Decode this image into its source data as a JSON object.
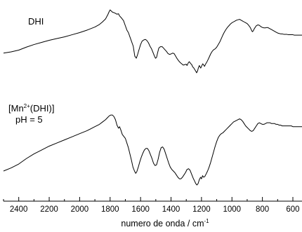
{
  "chart_data": {
    "type": "line",
    "xlabel_main": "numero de onda / cm",
    "xlabel_sup": "-1",
    "xlim": [
      2500,
      540
    ],
    "x_reversed": true,
    "xticks": [
      2400,
      2200,
      2000,
      1800,
      1600,
      1400,
      1200,
      1000,
      800,
      600
    ],
    "y_axis_shown": false,
    "grid": false,
    "legend": "none",
    "color": "#000000",
    "series": [
      {
        "label_lines": [
          "DHI"
        ],
        "offset": "top",
        "points": [
          [
            2500,
            0.02
          ],
          [
            2450,
            0.05
          ],
          [
            2400,
            0.09
          ],
          [
            2350,
            0.16
          ],
          [
            2300,
            0.22
          ],
          [
            2250,
            0.27
          ],
          [
            2200,
            0.32
          ],
          [
            2150,
            0.36
          ],
          [
            2100,
            0.4
          ],
          [
            2050,
            0.45
          ],
          [
            2000,
            0.5
          ],
          [
            1950,
            0.56
          ],
          [
            1900,
            0.63
          ],
          [
            1870,
            0.69
          ],
          [
            1850,
            0.75
          ],
          [
            1830,
            0.82
          ],
          [
            1815,
            0.92
          ],
          [
            1805,
            1.0
          ],
          [
            1800,
            1.03
          ],
          [
            1785,
            0.98
          ],
          [
            1770,
            0.96
          ],
          [
            1755,
            0.93
          ],
          [
            1745,
            0.94
          ],
          [
            1738,
            0.89
          ],
          [
            1725,
            0.84
          ],
          [
            1712,
            0.78
          ],
          [
            1700,
            0.66
          ],
          [
            1690,
            0.56
          ],
          [
            1680,
            0.5
          ],
          [
            1670,
            0.4
          ],
          [
            1658,
            0.28
          ],
          [
            1648,
            0.18
          ],
          [
            1638,
            -0.05
          ],
          [
            1628,
            -0.1
          ],
          [
            1620,
            -0.02
          ],
          [
            1612,
            0.08
          ],
          [
            1600,
            0.22
          ],
          [
            1590,
            0.3
          ],
          [
            1578,
            0.33
          ],
          [
            1568,
            0.34
          ],
          [
            1560,
            0.32
          ],
          [
            1548,
            0.26
          ],
          [
            1538,
            0.18
          ],
          [
            1528,
            0.12
          ],
          [
            1520,
            0.05
          ],
          [
            1510,
            -0.04
          ],
          [
            1502,
            -0.1
          ],
          [
            1495,
            -0.08
          ],
          [
            1488,
            0.03
          ],
          [
            1480,
            0.14
          ],
          [
            1470,
            0.17
          ],
          [
            1458,
            0.17
          ],
          [
            1450,
            0.14
          ],
          [
            1440,
            0.1
          ],
          [
            1430,
            0.06
          ],
          [
            1420,
            0.01
          ],
          [
            1410,
            -0.01
          ],
          [
            1400,
            0.0
          ],
          [
            1390,
            0.02
          ],
          [
            1380,
            0.01
          ],
          [
            1370,
            -0.05
          ],
          [
            1360,
            -0.11
          ],
          [
            1350,
            -0.16
          ],
          [
            1340,
            -0.2
          ],
          [
            1330,
            -0.23
          ],
          [
            1320,
            -0.26
          ],
          [
            1310,
            -0.25
          ],
          [
            1300,
            -0.24
          ],
          [
            1295,
            -0.27
          ],
          [
            1287,
            -0.21
          ],
          [
            1280,
            -0.18
          ],
          [
            1272,
            -0.22
          ],
          [
            1264,
            -0.25
          ],
          [
            1258,
            -0.3
          ],
          [
            1250,
            -0.33
          ],
          [
            1245,
            -0.36
          ],
          [
            1238,
            -0.4
          ],
          [
            1232,
            -0.44
          ],
          [
            1226,
            -0.4
          ],
          [
            1220,
            -0.32
          ],
          [
            1214,
            -0.27
          ],
          [
            1210,
            -0.3
          ],
          [
            1205,
            -0.33
          ],
          [
            1200,
            -0.29
          ],
          [
            1192,
            -0.23
          ],
          [
            1185,
            -0.26
          ],
          [
            1180,
            -0.29
          ],
          [
            1172,
            -0.23
          ],
          [
            1165,
            -0.19
          ],
          [
            1158,
            -0.14
          ],
          [
            1150,
            -0.08
          ],
          [
            1140,
            0.0
          ],
          [
            1130,
            0.06
          ],
          [
            1120,
            0.1
          ],
          [
            1110,
            0.12
          ],
          [
            1100,
            0.16
          ],
          [
            1090,
            0.22
          ],
          [
            1080,
            0.28
          ],
          [
            1070,
            0.36
          ],
          [
            1060,
            0.44
          ],
          [
            1050,
            0.51
          ],
          [
            1040,
            0.57
          ],
          [
            1030,
            0.62
          ],
          [
            1020,
            0.66
          ],
          [
            1010,
            0.7
          ],
          [
            1000,
            0.73
          ],
          [
            990,
            0.75
          ],
          [
            980,
            0.77
          ],
          [
            970,
            0.79
          ],
          [
            960,
            0.8
          ],
          [
            950,
            0.81
          ],
          [
            940,
            0.79
          ],
          [
            930,
            0.77
          ],
          [
            920,
            0.75
          ],
          [
            910,
            0.73
          ],
          [
            900,
            0.71
          ],
          [
            890,
            0.67
          ],
          [
            880,
            0.62
          ],
          [
            872,
            0.56
          ],
          [
            866,
            0.52
          ],
          [
            860,
            0.54
          ],
          [
            855,
            0.58
          ],
          [
            848,
            0.62
          ],
          [
            840,
            0.66
          ],
          [
            830,
            0.68
          ],
          [
            820,
            0.67
          ],
          [
            810,
            0.64
          ],
          [
            800,
            0.62
          ],
          [
            790,
            0.61
          ],
          [
            780,
            0.61
          ],
          [
            770,
            0.62
          ],
          [
            760,
            0.61
          ],
          [
            750,
            0.59
          ],
          [
            740,
            0.57
          ],
          [
            730,
            0.55
          ],
          [
            720,
            0.53
          ],
          [
            710,
            0.51
          ],
          [
            700,
            0.49
          ],
          [
            690,
            0.48
          ],
          [
            680,
            0.47
          ],
          [
            670,
            0.47
          ],
          [
            660,
            0.46
          ],
          [
            650,
            0.46
          ],
          [
            640,
            0.46
          ],
          [
            630,
            0.45
          ],
          [
            620,
            0.45
          ],
          [
            610,
            0.45
          ],
          [
            600,
            0.45
          ],
          [
            590,
            0.44
          ],
          [
            580,
            0.44
          ],
          [
            570,
            0.44
          ],
          [
            560,
            0.44
          ],
          [
            550,
            0.44
          ],
          [
            540,
            0.44
          ]
        ]
      },
      {
        "label_lines": [
          "[Mn",
          "2+",
          "(DHI)]",
          "pH = 5"
        ],
        "offset": "bottom",
        "points": [
          [
            2500,
            0.0
          ],
          [
            2450,
            0.04
          ],
          [
            2400,
            0.09
          ],
          [
            2350,
            0.16
          ],
          [
            2300,
            0.22
          ],
          [
            2250,
            0.27
          ],
          [
            2200,
            0.32
          ],
          [
            2150,
            0.36
          ],
          [
            2100,
            0.4
          ],
          [
            2050,
            0.44
          ],
          [
            2000,
            0.48
          ],
          [
            1950,
            0.52
          ],
          [
            1900,
            0.57
          ],
          [
            1870,
            0.6
          ],
          [
            1850,
            0.63
          ],
          [
            1830,
            0.66
          ],
          [
            1815,
            0.69
          ],
          [
            1805,
            0.71
          ],
          [
            1795,
            0.72
          ],
          [
            1785,
            0.72
          ],
          [
            1775,
            0.7
          ],
          [
            1765,
            0.66
          ],
          [
            1755,
            0.59
          ],
          [
            1745,
            0.55
          ],
          [
            1738,
            0.57
          ],
          [
            1730,
            0.53
          ],
          [
            1720,
            0.47
          ],
          [
            1712,
            0.45
          ],
          [
            1700,
            0.42
          ],
          [
            1690,
            0.36
          ],
          [
            1680,
            0.3
          ],
          [
            1670,
            0.22
          ],
          [
            1660,
            0.14
          ],
          [
            1650,
            0.05
          ],
          [
            1640,
            0.0
          ],
          [
            1632,
            -0.03
          ],
          [
            1625,
            -0.01
          ],
          [
            1615,
            0.05
          ],
          [
            1605,
            0.12
          ],
          [
            1595,
            0.18
          ],
          [
            1585,
            0.23
          ],
          [
            1575,
            0.27
          ],
          [
            1565,
            0.29
          ],
          [
            1555,
            0.29
          ],
          [
            1545,
            0.26
          ],
          [
            1535,
            0.21
          ],
          [
            1525,
            0.16
          ],
          [
            1515,
            0.1
          ],
          [
            1505,
            0.07
          ],
          [
            1495,
            0.08
          ],
          [
            1485,
            0.15
          ],
          [
            1475,
            0.24
          ],
          [
            1465,
            0.3
          ],
          [
            1455,
            0.31
          ],
          [
            1445,
            0.28
          ],
          [
            1435,
            0.22
          ],
          [
            1425,
            0.16
          ],
          [
            1415,
            0.1
          ],
          [
            1405,
            0.05
          ],
          [
            1395,
            0.02
          ],
          [
            1385,
            0.0
          ],
          [
            1375,
            -0.02
          ],
          [
            1365,
            -0.05
          ],
          [
            1355,
            -0.08
          ],
          [
            1345,
            -0.1
          ],
          [
            1335,
            -0.1
          ],
          [
            1325,
            -0.08
          ],
          [
            1315,
            -0.05
          ],
          [
            1305,
            -0.02
          ],
          [
            1295,
            0.02
          ],
          [
            1285,
            0.03
          ],
          [
            1275,
            0.01
          ],
          [
            1265,
            -0.04
          ],
          [
            1255,
            -0.09
          ],
          [
            1245,
            -0.13
          ],
          [
            1238,
            -0.16
          ],
          [
            1230,
            -0.18
          ],
          [
            1222,
            -0.16
          ],
          [
            1214,
            -0.11
          ],
          [
            1206,
            -0.08
          ],
          [
            1200,
            -0.1
          ],
          [
            1193,
            -0.06
          ],
          [
            1186,
            -0.08
          ],
          [
            1178,
            -0.07
          ],
          [
            1170,
            -0.04
          ],
          [
            1160,
            0.0
          ],
          [
            1150,
            0.05
          ],
          [
            1140,
            0.11
          ],
          [
            1130,
            0.18
          ],
          [
            1120,
            0.25
          ],
          [
            1110,
            0.32
          ],
          [
            1100,
            0.38
          ],
          [
            1090,
            0.43
          ],
          [
            1080,
            0.46
          ],
          [
            1070,
            0.48
          ],
          [
            1060,
            0.49
          ],
          [
            1050,
            0.51
          ],
          [
            1040,
            0.53
          ],
          [
            1030,
            0.55
          ],
          [
            1020,
            0.57
          ],
          [
            1010,
            0.59
          ],
          [
            1000,
            0.61
          ],
          [
            990,
            0.63
          ],
          [
            980,
            0.64
          ],
          [
            970,
            0.65
          ],
          [
            960,
            0.66
          ],
          [
            950,
            0.67
          ],
          [
            940,
            0.66
          ],
          [
            930,
            0.64
          ],
          [
            920,
            0.61
          ],
          [
            910,
            0.58
          ],
          [
            900,
            0.56
          ],
          [
            890,
            0.54
          ],
          [
            880,
            0.52
          ],
          [
            870,
            0.51
          ],
          [
            860,
            0.52
          ],
          [
            850,
            0.55
          ],
          [
            840,
            0.58
          ],
          [
            830,
            0.61
          ],
          [
            820,
            0.62
          ],
          [
            810,
            0.61
          ],
          [
            800,
            0.6
          ],
          [
            790,
            0.6
          ],
          [
            780,
            0.61
          ],
          [
            770,
            0.62
          ],
          [
            760,
            0.62
          ],
          [
            750,
            0.62
          ],
          [
            740,
            0.61
          ],
          [
            730,
            0.61
          ],
          [
            720,
            0.61
          ],
          [
            710,
            0.6
          ],
          [
            700,
            0.6
          ],
          [
            690,
            0.59
          ],
          [
            680,
            0.59
          ],
          [
            670,
            0.58
          ],
          [
            660,
            0.58
          ],
          [
            650,
            0.58
          ],
          [
            640,
            0.58
          ],
          [
            630,
            0.58
          ],
          [
            620,
            0.58
          ],
          [
            610,
            0.58
          ],
          [
            600,
            0.57
          ],
          [
            590,
            0.57
          ],
          [
            580,
            0.57
          ],
          [
            570,
            0.57
          ],
          [
            560,
            0.57
          ],
          [
            550,
            0.57
          ],
          [
            540,
            0.57
          ]
        ]
      }
    ]
  }
}
